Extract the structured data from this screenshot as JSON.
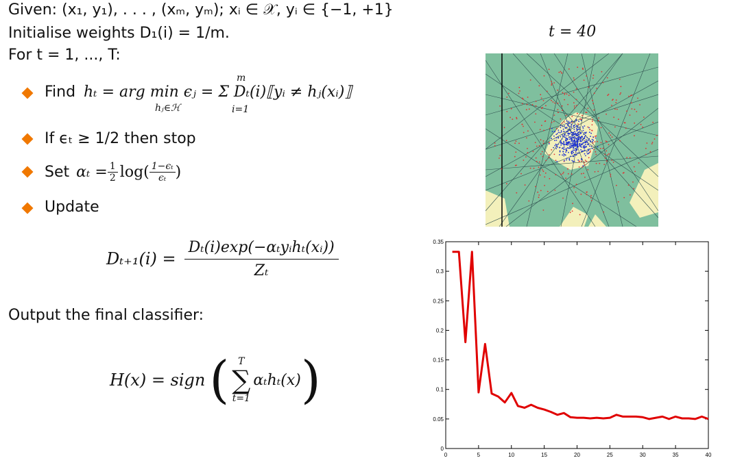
{
  "algorithm": {
    "given": "Given: (x₁, y₁), . . . , (xₘ, yₘ); xᵢ ∈ 𝒳, yᵢ ∈ {−1, +1}",
    "init": "Initialise weights D₁(i) = 1/m.",
    "loop": "For t = 1, ..., T:",
    "steps": [
      {
        "label": "Find",
        "formula": "hₜ = arg min ϵⱼ = Σ Dₜ(i)⟦yᵢ ≠ hⱼ(xᵢ)⟧",
        "under_min": "hⱼ∈ℋ",
        "sum_top": "m",
        "sum_bottom": "i=1"
      },
      {
        "label": "If ϵₜ ≥ 1/2 then stop"
      },
      {
        "label": "Set",
        "formula_lead": "αₜ = ",
        "half_num": "1",
        "half_den": "2",
        "log": "log(",
        "frac_num": "1−ϵₜ",
        "frac_den": "ϵₜ",
        "close": ")"
      },
      {
        "label": "Update"
      }
    ],
    "update_lhs": "Dₜ₊₁(i) =",
    "update_num": "Dₜ(i)exp(−αₜyᵢhₜ(xᵢ))",
    "update_den": "Zₜ",
    "output_text": "Output the final classifier:",
    "final_lhs": "H(x) = sign",
    "final_sum_top": "T",
    "final_sum_bottom": "t=1",
    "final_body": "αₜhₜ(x)"
  },
  "iteration_label": "t = 40",
  "chart_data": {
    "type": "line",
    "title": "",
    "xlabel": "",
    "ylabel": "",
    "xlim": [
      0,
      40
    ],
    "ylim": [
      0,
      0.35
    ],
    "x_ticks": [
      "0",
      "5",
      "10",
      "15",
      "20",
      "25",
      "30",
      "35",
      "40"
    ],
    "y_ticks": [
      "0",
      "0.05",
      "0.1",
      "0.15",
      "0.2",
      "0.25",
      "0.3",
      "0.35"
    ],
    "color": "#e00000",
    "series": [
      {
        "x": [
          1,
          2,
          3,
          4,
          5,
          6,
          7,
          8,
          9,
          10,
          11,
          12,
          13,
          14,
          15,
          16,
          17,
          18,
          19,
          20,
          21,
          22,
          23,
          24,
          25,
          26,
          27,
          28,
          29,
          30,
          31,
          32,
          33,
          34,
          35,
          36,
          37,
          38,
          39,
          40
        ],
        "values": [
          0.333,
          0.333,
          0.18,
          0.333,
          0.095,
          0.177,
          0.093,
          0.088,
          0.078,
          0.094,
          0.072,
          0.069,
          0.074,
          0.069,
          0.066,
          0.062,
          0.057,
          0.06,
          0.053,
          0.052,
          0.052,
          0.051,
          0.052,
          0.051,
          0.052,
          0.057,
          0.054,
          0.054,
          0.054,
          0.053,
          0.05,
          0.052,
          0.054,
          0.05,
          0.054,
          0.051,
          0.051,
          0.05,
          0.054,
          0.05
        ]
      }
    ]
  }
}
